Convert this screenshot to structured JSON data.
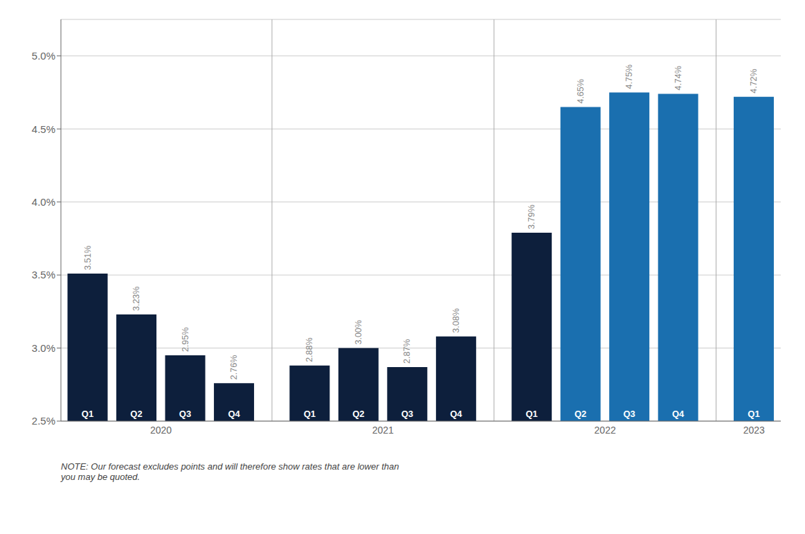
{
  "chart_data": {
    "type": "bar",
    "categories": [
      "Q1",
      "Q2",
      "Q3",
      "Q4",
      "Q1",
      "Q2",
      "Q3",
      "Q4",
      "Q1",
      "Q2",
      "Q3",
      "Q4",
      "Q1"
    ],
    "years": [
      "2020",
      "2020",
      "2020",
      "2020",
      "2021",
      "2021",
      "2021",
      "2021",
      "2022",
      "2022",
      "2022",
      "2022",
      "2023"
    ],
    "values": [
      3.51,
      3.23,
      2.95,
      2.76,
      2.88,
      3.0,
      2.87,
      3.08,
      3.79,
      4.65,
      4.75,
      4.74,
      4.72
    ],
    "value_labels": [
      "3.51%",
      "3.23%",
      "2.95%",
      "2.76%",
      "2.88%",
      "3.00%",
      "2.87%",
      "3.08%",
      "3.79%",
      "4.65%",
      "4.75%",
      "4.74%",
      "4.72%"
    ],
    "data_labels": true,
    "colors": [
      "#0d1f3c",
      "#0d1f3c",
      "#0d1f3c",
      "#0d1f3c",
      "#0d1f3c",
      "#0d1f3c",
      "#0d1f3c",
      "#0d1f3c",
      "#0d1f3c",
      "#1a6faf",
      "#1a6faf",
      "#1a6faf",
      "#1a6faf"
    ],
    "ylim": [
      2.5,
      5.25
    ],
    "yticks": [
      {
        "value": 2.5,
        "label": "2.5%"
      },
      {
        "value": 3.0,
        "label": "3.0%"
      },
      {
        "value": 3.5,
        "label": "3.5%"
      },
      {
        "value": 4.0,
        "label": "4.0%"
      },
      {
        "value": 4.5,
        "label": "4.5%"
      },
      {
        "value": 5.0,
        "label": "5.0%"
      }
    ],
    "grid": true,
    "note": "NOTE: Our forecast excludes points and will therefore show rates that are lower than\nyou may be quoted."
  }
}
